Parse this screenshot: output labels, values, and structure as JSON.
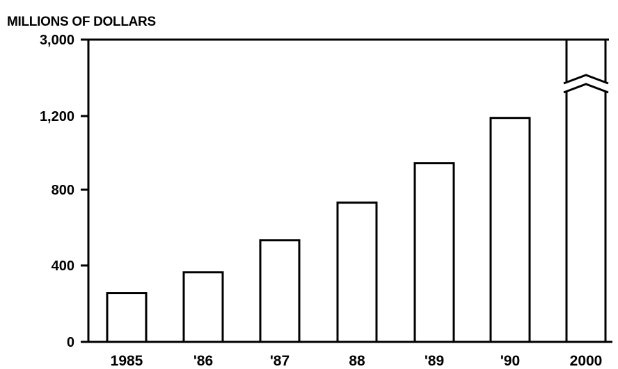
{
  "chart_data": {
    "type": "bar",
    "ylabel": "MILLIONS OF DOLLARS",
    "categories": [
      "1985",
      "'86",
      "'87",
      "88",
      "'89",
      "'90",
      "2000"
    ],
    "values": [
      260,
      370,
      540,
      740,
      950,
      1190,
      3000
    ],
    "yticks": [
      0,
      400,
      800,
      1200,
      3000
    ],
    "ytick_labels": [
      "0",
      "400",
      "800",
      "1,200",
      "3,000"
    ],
    "ylim": [
      0,
      3000
    ],
    "axis_break": "between 1,200 and 3,000",
    "grid": false,
    "legend": "none",
    "bar_fill": "#ffffff",
    "bar_stroke": "#000000"
  }
}
